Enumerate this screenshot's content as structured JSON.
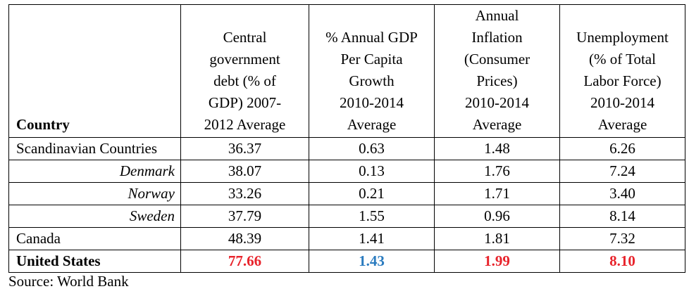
{
  "table": {
    "headers": {
      "country": "Country",
      "debt": [
        "Central",
        "government",
        "debt (% of",
        "GDP) 2007-",
        "2012 Average"
      ],
      "gdp": [
        "% Annual GDP",
        "Per Capita",
        "Growth",
        "2010-2014",
        "Average"
      ],
      "inflation": [
        "Annual",
        "Inflation",
        "(Consumer",
        "Prices)",
        "2010-2014",
        "Average"
      ],
      "unemployment": [
        "Unemployment",
        "(% of Total",
        "Labor Force)",
        "2010-2014",
        "Average"
      ]
    },
    "rows": [
      {
        "country": "Scandinavian Countries",
        "debt": "36.37",
        "gdp": "0.63",
        "inflation": "1.48",
        "unemployment": "6.26"
      },
      {
        "country": "Denmark",
        "debt": "38.07",
        "gdp": "0.13",
        "inflation": "1.76",
        "unemployment": "7.24"
      },
      {
        "country": "Norway",
        "debt": "33.26",
        "gdp": "0.21",
        "inflation": "1.71",
        "unemployment": "3.40"
      },
      {
        "country": "Sweden",
        "debt": "37.79",
        "gdp": "1.55",
        "inflation": "0.96",
        "unemployment": "8.14"
      },
      {
        "country": "Canada",
        "debt": "48.39",
        "gdp": "1.41",
        "inflation": "1.81",
        "unemployment": "7.32"
      },
      {
        "country": "United States",
        "debt": "77.66",
        "gdp": "1.43",
        "inflation": "1.99",
        "unemployment": "8.10"
      }
    ],
    "highlight_colors": {
      "red": "#e8232b",
      "blue": "#2a7bbf"
    }
  },
  "source": "Source: World Bank"
}
